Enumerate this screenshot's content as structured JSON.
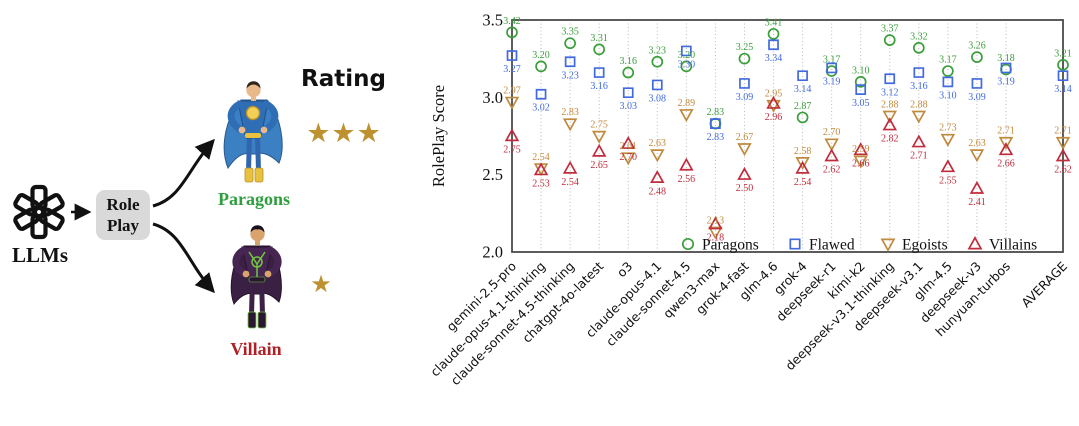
{
  "left_panel": {
    "llms_label": "LLMs",
    "role_play_label": "Role Play",
    "rating_label": "Rating",
    "paragons_label": "Paragons",
    "villain_label": "Villain",
    "paragon_rating": 3,
    "villain_rating": 1,
    "star_char": "★"
  },
  "colors": {
    "paragons": "#3a9e3a",
    "flawed": "#4169e1",
    "egoists": "#c08a3e",
    "villains": "#c02c3c",
    "paragons_text": "#2e9e3f",
    "villain_text": "#b01f24",
    "star": "#bd9130",
    "axis": "#4a4a4a",
    "grid": "#bbbbbb",
    "tick_text": "#111111"
  },
  "chart_data": {
    "type": "scatter",
    "title": "",
    "xlabel": "",
    "ylabel": "RolePlay Score",
    "ylim": [
      2.0,
      3.5
    ],
    "yticks": [
      "3.5",
      "3.0",
      "2.5",
      "2.0"
    ],
    "ytick_values": [
      3.5,
      3.0,
      2.5,
      2.0
    ],
    "grid": "vertical-dotted",
    "legend_position": "bottom-inside",
    "categories": [
      "gemini-2.5-pro",
      "claude-opus-4.1-thinking",
      "claude-sonnet-4.5-thinking",
      "chatgpt-4o-latest",
      "o3",
      "claude-opus-4.1",
      "claude-sonnet-4.5",
      "qwen3-max",
      "grok-4-fast",
      "glm-4.6",
      "grok-4",
      "deepseek-r1",
      "kimi-k2",
      "deepseek-v3.1-thinking",
      "deepseek-v3.1",
      "glm-4.5",
      "deepseek-v3",
      "hunyuan-turbos",
      "AVERAGE"
    ],
    "series": [
      {
        "name": "Paragons",
        "marker": "circle",
        "color": "#3a9e3a",
        "label_side": "above",
        "values": [
          3.42,
          3.2,
          3.35,
          3.31,
          3.16,
          3.23,
          3.2,
          2.83,
          3.25,
          3.41,
          2.87,
          3.17,
          3.1,
          3.37,
          3.32,
          3.17,
          3.26,
          3.18,
          3.21
        ]
      },
      {
        "name": "Flawed",
        "marker": "square",
        "color": "#4169e1",
        "label_side": "below",
        "values": [
          3.27,
          3.02,
          3.23,
          3.16,
          3.03,
          3.08,
          3.3,
          2.83,
          3.09,
          3.34,
          3.14,
          3.19,
          3.05,
          3.12,
          3.16,
          3.1,
          3.09,
          3.19,
          3.14
        ]
      },
      {
        "name": "Egoists",
        "marker": "triangle-down",
        "color": "#c08a3e",
        "label_side": "above",
        "values": [
          2.97,
          2.54,
          2.83,
          2.75,
          2.61,
          2.63,
          2.89,
          2.13,
          2.67,
          2.95,
          2.58,
          2.7,
          2.59,
          2.88,
          2.88,
          2.73,
          2.63,
          2.71,
          2.71
        ]
      },
      {
        "name": "Villains",
        "marker": "triangle-up",
        "color": "#c02c3c",
        "label_side": "below",
        "values": [
          2.75,
          2.53,
          2.54,
          2.65,
          2.7,
          2.48,
          2.56,
          2.18,
          2.5,
          2.96,
          2.54,
          2.62,
          2.66,
          2.82,
          2.71,
          2.55,
          2.41,
          2.66,
          2.62
        ]
      }
    ]
  }
}
